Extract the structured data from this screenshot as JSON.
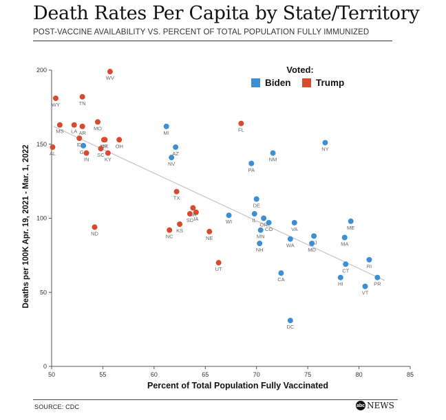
{
  "header": {
    "title": "Death Rates Per Capita by State/Territory",
    "subtitle": "POST-VACCINE AVAILABILITY VS. PERCENT OF TOTAL POPULATION FULLY IMMUNIZED"
  },
  "footer": {
    "source": "SOURCE: CDC",
    "brand_badge": "abc",
    "brand_text": "NEWS"
  },
  "chart_data": {
    "type": "scatter",
    "xlabel": "Percent of Total Population Fully Vaccinated",
    "ylabel": "Deaths per 100K Apr. 19, 2021 - Mar. 1, 2022",
    "xlim": [
      50,
      85
    ],
    "ylim": [
      0,
      200
    ],
    "x_ticks": [
      50,
      55,
      60,
      65,
      70,
      75,
      80,
      85
    ],
    "y_ticks": [
      0,
      50,
      100,
      150,
      200
    ],
    "grid": false,
    "legend": {
      "title": "Voted:",
      "position": "top-right",
      "entries": [
        {
          "name": "Biden",
          "color": "#3d8fd1"
        },
        {
          "name": "Trump",
          "color": "#d64a2f"
        }
      ]
    },
    "trendline": {
      "x": [
        50.2,
        82.5
      ],
      "y": [
        162,
        58
      ]
    },
    "series": [
      {
        "name": "Biden",
        "color": "#3d8fd1",
        "points": [
          {
            "label": "MI",
            "x": 61.2,
            "y": 162
          },
          {
            "label": "GA",
            "x": 53.1,
            "y": 149
          },
          {
            "label": "AZ",
            "x": 62.1,
            "y": 148
          },
          {
            "label": "NV",
            "x": 61.7,
            "y": 141
          },
          {
            "label": "NY",
            "x": 76.7,
            "y": 151
          },
          {
            "label": "NM",
            "x": 71.6,
            "y": 144
          },
          {
            "label": "PA",
            "x": 69.5,
            "y": 137
          },
          {
            "label": "DE",
            "x": 70.0,
            "y": 113
          },
          {
            "label": "WI",
            "x": 67.3,
            "y": 102
          },
          {
            "label": "IL",
            "x": 69.8,
            "y": 103
          },
          {
            "label": "OR",
            "x": 70.7,
            "y": 100
          },
          {
            "label": "CO",
            "x": 71.2,
            "y": 97
          },
          {
            "label": "MN",
            "x": 70.4,
            "y": 92
          },
          {
            "label": "NH",
            "x": 70.3,
            "y": 83
          },
          {
            "label": "VA",
            "x": 73.7,
            "y": 97
          },
          {
            "label": "WA",
            "x": 73.3,
            "y": 86
          },
          {
            "label": "NJ",
            "x": 75.6,
            "y": 88
          },
          {
            "label": "MD",
            "x": 75.4,
            "y": 83
          },
          {
            "label": "ME",
            "x": 79.2,
            "y": 98
          },
          {
            "label": "MA",
            "x": 78.6,
            "y": 87
          },
          {
            "label": "CA",
            "x": 72.4,
            "y": 63
          },
          {
            "label": "CT",
            "x": 78.7,
            "y": 69
          },
          {
            "label": "RI",
            "x": 81.0,
            "y": 72
          },
          {
            "label": "HI",
            "x": 78.2,
            "y": 60
          },
          {
            "label": "PR",
            "x": 81.8,
            "y": 60
          },
          {
            "label": "VT",
            "x": 80.6,
            "y": 54
          },
          {
            "label": "DC",
            "x": 73.3,
            "y": 31
          }
        ]
      },
      {
        "name": "Trump",
        "color": "#d64a2f",
        "points": [
          {
            "label": "WV",
            "x": 55.7,
            "y": 199
          },
          {
            "label": "WY",
            "x": 50.4,
            "y": 181
          },
          {
            "label": "TN",
            "x": 53.0,
            "y": 182
          },
          {
            "label": "MS",
            "x": 50.8,
            "y": 163
          },
          {
            "label": "LA",
            "x": 52.2,
            "y": 163
          },
          {
            "label": "AR",
            "x": 53.0,
            "y": 162
          },
          {
            "label": "MO",
            "x": 54.5,
            "y": 165
          },
          {
            "label": "AL",
            "x": 50.1,
            "y": 148
          },
          {
            "label": "ID",
            "x": 52.7,
            "y": 154
          },
          {
            "label": "MT",
            "x": 55.1,
            "y": 153
          },
          {
            "label": "OK",
            "x": 55.2,
            "y": 153
          },
          {
            "label": "OH",
            "x": 56.6,
            "y": 153
          },
          {
            "label": "SC",
            "x": 54.8,
            "y": 147
          },
          {
            "label": "KY",
            "x": 55.5,
            "y": 144
          },
          {
            "label": "IN",
            "x": 53.4,
            "y": 144
          },
          {
            "label": "FL",
            "x": 68.5,
            "y": 164
          },
          {
            "label": "TX",
            "x": 62.2,
            "y": 118
          },
          {
            "label": "AK",
            "x": 63.8,
            "y": 107
          },
          {
            "label": "IA",
            "x": 64.1,
            "y": 104
          },
          {
            "label": "SD",
            "x": 63.5,
            "y": 103
          },
          {
            "label": "KS",
            "x": 62.5,
            "y": 96
          },
          {
            "label": "NC",
            "x": 61.5,
            "y": 92
          },
          {
            "label": "NE",
            "x": 65.4,
            "y": 91
          },
          {
            "label": "ND",
            "x": 54.2,
            "y": 94
          },
          {
            "label": "UT",
            "x": 66.3,
            "y": 70
          }
        ]
      }
    ]
  }
}
